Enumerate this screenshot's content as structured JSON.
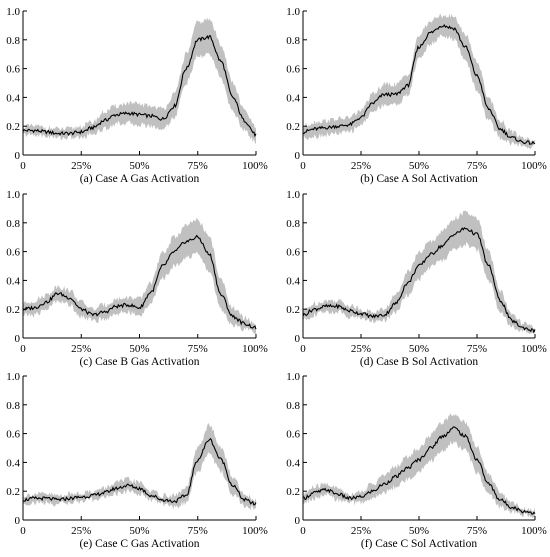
{
  "chart_data": [
    {
      "type": "area",
      "caption": "(a) Case A Gas Activation",
      "band_color": "#c0c0c0",
      "line_color": "#000000",
      "ylim": [
        0,
        1.0
      ],
      "yticks": [
        "0",
        "0.2",
        "0.4",
        "0.6",
        "0.8",
        "1.0"
      ],
      "xticks": [
        "0",
        "25%",
        "50%",
        "75%",
        "100%"
      ],
      "x": [
        0,
        5,
        10,
        15,
        20,
        25,
        30,
        35,
        40,
        45,
        50,
        55,
        60,
        65,
        70,
        75,
        80,
        85,
        90,
        95,
        100
      ],
      "mean": [
        0.17,
        0.17,
        0.16,
        0.15,
        0.15,
        0.16,
        0.19,
        0.24,
        0.28,
        0.29,
        0.28,
        0.27,
        0.25,
        0.34,
        0.6,
        0.8,
        0.82,
        0.65,
        0.4,
        0.24,
        0.14
      ],
      "band": [
        0.03,
        0.03,
        0.03,
        0.03,
        0.03,
        0.04,
        0.04,
        0.06,
        0.06,
        0.07,
        0.07,
        0.07,
        0.07,
        0.08,
        0.1,
        0.12,
        0.12,
        0.12,
        0.1,
        0.07,
        0.05
      ]
    },
    {
      "type": "area",
      "caption": "(b) Case A Sol Activation",
      "band_color": "#c0c0c0",
      "line_color": "#000000",
      "ylim": [
        0,
        1.0
      ],
      "yticks": [
        "0",
        "0.2",
        "0.4",
        "0.6",
        "0.8",
        "1.0"
      ],
      "xticks": [
        "0",
        "25%",
        "50%",
        "75%",
        "100%"
      ],
      "x": [
        0,
        5,
        10,
        15,
        20,
        25,
        30,
        35,
        40,
        45,
        50,
        55,
        60,
        65,
        70,
        75,
        80,
        85,
        90,
        95,
        100
      ],
      "mean": [
        0.16,
        0.18,
        0.19,
        0.2,
        0.21,
        0.26,
        0.36,
        0.42,
        0.42,
        0.48,
        0.75,
        0.85,
        0.9,
        0.88,
        0.75,
        0.55,
        0.32,
        0.18,
        0.12,
        0.09,
        0.08
      ],
      "band": [
        0.04,
        0.05,
        0.05,
        0.05,
        0.05,
        0.05,
        0.06,
        0.07,
        0.07,
        0.07,
        0.08,
        0.08,
        0.07,
        0.08,
        0.09,
        0.1,
        0.08,
        0.06,
        0.04,
        0.03,
        0.02
      ]
    },
    {
      "type": "area",
      "caption": "(c) Case B Gas Activation",
      "band_color": "#c0c0c0",
      "line_color": "#000000",
      "ylim": [
        0,
        1.0
      ],
      "yticks": [
        "0",
        "0.2",
        "0.4",
        "0.6",
        "0.8",
        "1.0"
      ],
      "xticks": [
        "0",
        "25%",
        "50%",
        "75%",
        "100%"
      ],
      "x": [
        0,
        5,
        10,
        15,
        20,
        25,
        30,
        35,
        40,
        45,
        50,
        55,
        60,
        65,
        70,
        75,
        80,
        85,
        90,
        95,
        100
      ],
      "mean": [
        0.2,
        0.21,
        0.25,
        0.31,
        0.28,
        0.2,
        0.16,
        0.18,
        0.22,
        0.23,
        0.21,
        0.32,
        0.5,
        0.6,
        0.67,
        0.7,
        0.58,
        0.3,
        0.15,
        0.1,
        0.07
      ],
      "band": [
        0.04,
        0.05,
        0.05,
        0.05,
        0.05,
        0.05,
        0.04,
        0.05,
        0.05,
        0.05,
        0.06,
        0.07,
        0.09,
        0.1,
        0.11,
        0.12,
        0.12,
        0.1,
        0.06,
        0.04,
        0.03
      ]
    },
    {
      "type": "area",
      "caption": "(d) Case B Sol Activation",
      "band_color": "#c0c0c0",
      "line_color": "#000000",
      "ylim": [
        0,
        1.0
      ],
      "yticks": [
        "0",
        "0.2",
        "0.4",
        "0.6",
        "0.8",
        "1.0"
      ],
      "xticks": [
        "0",
        "25%",
        "50%",
        "75%",
        "100%"
      ],
      "x": [
        0,
        5,
        10,
        15,
        20,
        25,
        30,
        35,
        40,
        45,
        50,
        55,
        60,
        65,
        70,
        75,
        80,
        85,
        90,
        95,
        100
      ],
      "mean": [
        0.16,
        0.2,
        0.22,
        0.22,
        0.19,
        0.17,
        0.15,
        0.16,
        0.24,
        0.38,
        0.5,
        0.58,
        0.64,
        0.72,
        0.76,
        0.72,
        0.5,
        0.26,
        0.12,
        0.07,
        0.05
      ],
      "band": [
        0.03,
        0.04,
        0.04,
        0.04,
        0.04,
        0.03,
        0.03,
        0.04,
        0.06,
        0.08,
        0.09,
        0.09,
        0.1,
        0.11,
        0.11,
        0.11,
        0.1,
        0.07,
        0.04,
        0.03,
        0.02
      ]
    },
    {
      "type": "area",
      "caption": "(e) Case C Gas Activation",
      "band_color": "#c0c0c0",
      "line_color": "#000000",
      "ylim": [
        0,
        1.0
      ],
      "yticks": [
        "0",
        "0.2",
        "0.4",
        "0.6",
        "0.8",
        "1.0"
      ],
      "xticks": [
        "0",
        "25%",
        "50%",
        "75%",
        "100%"
      ],
      "x": [
        0,
        5,
        10,
        15,
        20,
        25,
        30,
        35,
        40,
        45,
        50,
        55,
        60,
        65,
        70,
        75,
        80,
        85,
        90,
        95,
        100
      ],
      "mean": [
        0.14,
        0.15,
        0.15,
        0.14,
        0.15,
        0.16,
        0.17,
        0.19,
        0.22,
        0.24,
        0.22,
        0.17,
        0.14,
        0.13,
        0.17,
        0.42,
        0.56,
        0.42,
        0.24,
        0.14,
        0.11
      ],
      "band": [
        0.03,
        0.03,
        0.03,
        0.03,
        0.03,
        0.03,
        0.03,
        0.03,
        0.04,
        0.04,
        0.04,
        0.03,
        0.03,
        0.04,
        0.05,
        0.08,
        0.1,
        0.08,
        0.06,
        0.04,
        0.03
      ]
    },
    {
      "type": "area",
      "caption": "(f) Case C Sol Activation",
      "band_color": "#c0c0c0",
      "line_color": "#000000",
      "ylim": [
        0,
        1.0
      ],
      "yticks": [
        "0",
        "0.2",
        "0.4",
        "0.6",
        "0.8",
        "1.0"
      ],
      "xticks": [
        "0",
        "25%",
        "50%",
        "75%",
        "100%"
      ],
      "x": [
        0,
        5,
        10,
        15,
        20,
        25,
        30,
        35,
        40,
        45,
        50,
        55,
        60,
        65,
        70,
        75,
        80,
        85,
        90,
        95,
        100
      ],
      "mean": [
        0.15,
        0.19,
        0.21,
        0.18,
        0.15,
        0.16,
        0.2,
        0.25,
        0.3,
        0.36,
        0.42,
        0.5,
        0.58,
        0.64,
        0.58,
        0.42,
        0.25,
        0.14,
        0.09,
        0.06,
        0.05
      ],
      "band": [
        0.03,
        0.04,
        0.04,
        0.04,
        0.03,
        0.04,
        0.05,
        0.06,
        0.07,
        0.08,
        0.08,
        0.09,
        0.1,
        0.1,
        0.1,
        0.09,
        0.07,
        0.05,
        0.03,
        0.02,
        0.02
      ]
    }
  ]
}
